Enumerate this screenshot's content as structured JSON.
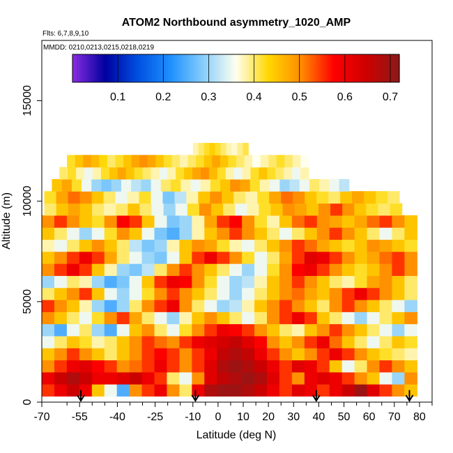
{
  "chart_data": {
    "type": "heatmap",
    "title": "ATOM2 Northbound asymmetry_1020_AMP",
    "flights_note": "Flts: 6,7,8,9,10",
    "dates_note": "MMDD: 0210,0213,0215,0218,0219",
    "xlabel": "Latitude (deg N)",
    "ylabel": "Altitude (m)",
    "xlim": [
      -70,
      85
    ],
    "ylim": [
      0,
      18000
    ],
    "xticks": [
      -70,
      -55,
      -40,
      -25,
      -10,
      0,
      10,
      20,
      30,
      40,
      50,
      60,
      70,
      80
    ],
    "xtick_labels": [
      "-70",
      "-55",
      "-40",
      "-25",
      "-10",
      "0",
      "10",
      "20",
      "30",
      "40",
      "50",
      "60",
      "70",
      "80"
    ],
    "minor_xticks": [
      -60,
      -50,
      -45,
      -35,
      -30,
      -20,
      -15,
      -5,
      5,
      15,
      25,
      35,
      45,
      55,
      65,
      75,
      85
    ],
    "yticks": [
      0,
      5000,
      10000,
      15000
    ],
    "ytick_labels": [
      "0",
      "5000",
      "10000",
      "15000"
    ],
    "colorbar": {
      "range": [
        0.0,
        0.72
      ],
      "ticks": [
        0.1,
        0.2,
        0.3,
        0.4,
        0.5,
        0.6,
        0.7
      ],
      "tick_labels": [
        "0.1",
        "0.2",
        "0.3",
        "0.4",
        "0.5",
        "0.6",
        "0.7"
      ],
      "colors": [
        "#8a2be2",
        "#0000a0",
        "#0050e0",
        "#1e90ff",
        "#87cefa",
        "#fffff0",
        "#ffd700",
        "#ff8c00",
        "#ff0000",
        "#cd0000",
        "#8b1a1a"
      ]
    },
    "profile_latitudes": [
      -54.5,
      -9,
      39,
      76
    ],
    "altitude_bands": [
      {
        "alt": 600,
        "lat_min": -70,
        "lat_max": 79,
        "values": [
          0.55,
          0.6,
          0.65,
          0.6,
          0.45,
          0.35,
          0.25,
          0.5,
          0.55,
          0.6,
          0.5,
          0.4,
          0.6,
          0.68,
          0.7,
          0.7,
          0.68,
          0.65,
          0.6,
          0.55,
          0.62,
          0.6,
          0.55,
          0.6,
          0.65,
          0.7,
          0.62,
          0.55,
          0.5,
          0.45
        ]
      },
      {
        "alt": 1200,
        "lat_min": -70,
        "lat_max": 79,
        "values": [
          0.6,
          0.65,
          0.68,
          0.65,
          0.6,
          0.6,
          0.62,
          0.65,
          0.6,
          0.55,
          0.4,
          0.35,
          0.5,
          0.62,
          0.66,
          0.68,
          0.7,
          0.68,
          0.62,
          0.55,
          0.5,
          0.6,
          0.62,
          0.6,
          0.55,
          0.5,
          0.45,
          0.35,
          0.3,
          0.5
        ]
      },
      {
        "alt": 1800,
        "lat_min": -70,
        "lat_max": 79,
        "values": [
          0.5,
          0.55,
          0.6,
          0.62,
          0.58,
          0.55,
          0.5,
          0.52,
          0.55,
          0.6,
          0.55,
          0.5,
          0.55,
          0.62,
          0.68,
          0.7,
          0.68,
          0.65,
          0.6,
          0.55,
          0.62,
          0.6,
          0.55,
          0.45,
          0.35,
          0.4,
          0.5,
          0.55,
          0.5,
          0.45
        ]
      },
      {
        "alt": 2400,
        "lat_min": -70,
        "lat_max": 79,
        "values": [
          0.45,
          0.5,
          0.55,
          0.5,
          0.45,
          0.4,
          0.45,
          0.5,
          0.55,
          0.58,
          0.55,
          0.5,
          0.55,
          0.6,
          0.66,
          0.68,
          0.66,
          0.6,
          0.55,
          0.5,
          0.45,
          0.5,
          0.55,
          0.6,
          0.55,
          0.5,
          0.45,
          0.42,
          0.4,
          0.38
        ]
      },
      {
        "alt": 3000,
        "lat_min": -70,
        "lat_max": 79,
        "values": [
          0.35,
          0.4,
          0.45,
          0.42,
          0.38,
          0.4,
          0.45,
          0.5,
          0.55,
          0.52,
          0.5,
          0.55,
          0.6,
          0.62,
          0.64,
          0.66,
          0.62,
          0.58,
          0.5,
          0.45,
          0.5,
          0.55,
          0.6,
          0.52,
          0.45,
          0.4,
          0.35,
          0.4,
          0.45,
          0.42
        ]
      },
      {
        "alt": 3600,
        "lat_min": -70,
        "lat_max": 79,
        "values": [
          0.3,
          0.25,
          0.35,
          0.4,
          0.3,
          0.25,
          0.35,
          0.45,
          0.5,
          0.4,
          0.35,
          0.42,
          0.5,
          0.55,
          0.6,
          0.58,
          0.55,
          0.5,
          0.45,
          0.4,
          0.38,
          0.45,
          0.5,
          0.55,
          0.5,
          0.45,
          0.4,
          0.35,
          0.3,
          0.35
        ]
      },
      {
        "alt": 4200,
        "lat_min": -70,
        "lat_max": 79,
        "values": [
          0.5,
          0.45,
          0.4,
          0.35,
          0.42,
          0.5,
          0.55,
          0.48,
          0.4,
          0.35,
          0.3,
          0.38,
          0.45,
          0.5,
          0.45,
          0.4,
          0.35,
          0.4,
          0.5,
          0.55,
          0.6,
          0.55,
          0.45,
          0.4,
          0.35,
          0.3,
          0.35,
          0.4,
          0.45,
          0.5
        ]
      },
      {
        "alt": 4800,
        "lat_min": -70,
        "lat_max": 79,
        "values": [
          0.55,
          0.5,
          0.45,
          0.38,
          0.3,
          0.25,
          0.3,
          0.4,
          0.5,
          0.55,
          0.6,
          0.5,
          0.4,
          0.35,
          0.3,
          0.32,
          0.38,
          0.45,
          0.5,
          0.55,
          0.5,
          0.45,
          0.4,
          0.5,
          0.55,
          0.5,
          0.45,
          0.4,
          0.35,
          0.3
        ]
      },
      {
        "alt": 5400,
        "lat_min": -70,
        "lat_max": 79,
        "values": [
          0.4,
          0.45,
          0.5,
          0.55,
          0.45,
          0.35,
          0.3,
          0.35,
          0.42,
          0.5,
          0.55,
          0.5,
          0.45,
          0.4,
          0.35,
          0.3,
          0.35,
          0.4,
          0.45,
          0.5,
          0.52,
          0.48,
          0.45,
          0.5,
          0.55,
          0.6,
          0.55,
          0.5,
          0.45,
          0.4
        ]
      },
      {
        "alt": 6000,
        "lat_min": -70,
        "lat_max": 79,
        "values": [
          0.3,
          0.35,
          0.4,
          0.38,
          0.3,
          0.25,
          0.28,
          0.35,
          0.45,
          0.55,
          0.6,
          0.58,
          0.5,
          0.42,
          0.35,
          0.3,
          0.32,
          0.38,
          0.45,
          0.5,
          0.55,
          0.5,
          0.45,
          0.4,
          0.38,
          0.42,
          0.48,
          0.5,
          0.45,
          0.4
        ]
      },
      {
        "alt": 6600,
        "lat_min": -70,
        "lat_max": 79,
        "values": [
          0.5,
          0.55,
          0.6,
          0.55,
          0.45,
          0.38,
          0.3,
          0.28,
          0.32,
          0.4,
          0.5,
          0.55,
          0.5,
          0.45,
          0.4,
          0.35,
          0.3,
          0.35,
          0.42,
          0.5,
          0.58,
          0.6,
          0.55,
          0.5,
          0.45,
          0.42,
          0.45,
          0.5,
          0.55,
          0.5
        ]
      },
      {
        "alt": 7200,
        "lat_min": -70,
        "lat_max": 79,
        "values": [
          0.45,
          0.5,
          0.55,
          0.6,
          0.55,
          0.48,
          0.4,
          0.35,
          0.3,
          0.28,
          0.35,
          0.45,
          0.55,
          0.6,
          0.55,
          0.5,
          0.42,
          0.35,
          0.4,
          0.48,
          0.55,
          0.62,
          0.6,
          0.55,
          0.5,
          0.45,
          0.48,
          0.52,
          0.55,
          0.5
        ]
      },
      {
        "alt": 7800,
        "lat_min": -70,
        "lat_max": 79,
        "values": [
          0.38,
          0.35,
          0.4,
          0.45,
          0.5,
          0.45,
          0.4,
          0.32,
          0.28,
          0.3,
          0.38,
          0.45,
          0.5,
          0.48,
          0.42,
          0.38,
          0.35,
          0.4,
          0.45,
          0.5,
          0.55,
          0.52,
          0.48,
          0.45,
          0.42,
          0.45,
          0.5,
          0.48,
          0.45,
          0.42
        ]
      },
      {
        "alt": 8400,
        "lat_min": -70,
        "lat_max": 79,
        "values": [
          0.45,
          0.4,
          0.35,
          0.3,
          0.35,
          0.42,
          0.5,
          0.45,
          0.35,
          0.28,
          0.25,
          0.3,
          0.38,
          0.45,
          0.5,
          0.55,
          0.5,
          0.45,
          0.4,
          0.35,
          0.4,
          0.45,
          0.5,
          0.55,
          0.5,
          0.45,
          0.4,
          0.35,
          0.4,
          0.45
        ]
      },
      {
        "alt": 9000,
        "lat_min": -70,
        "lat_max": 79,
        "values": [
          0.5,
          0.55,
          0.5,
          0.45,
          0.42,
          0.5,
          0.58,
          0.55,
          0.45,
          0.35,
          0.28,
          0.3,
          0.38,
          0.48,
          0.55,
          0.58,
          0.5,
          0.42,
          0.38,
          0.45,
          0.52,
          0.55,
          0.5,
          0.48,
          0.45,
          0.48,
          0.52,
          0.55,
          0.5,
          0.45
        ]
      },
      {
        "alt": 9600,
        "lat_min": -69,
        "lat_max": 73,
        "values": [
          0.4,
          0.45,
          0.48,
          0.45,
          0.4,
          0.38,
          0.4,
          0.45,
          0.4,
          0.35,
          0.3,
          0.35,
          0.42,
          0.5,
          0.45,
          0.4,
          0.35,
          0.38,
          0.42,
          0.45,
          0.5,
          0.48,
          0.45,
          0.5,
          0.55,
          0.5,
          0.45,
          0.42,
          0.4,
          0.42
        ]
      },
      {
        "alt": 10200,
        "lat_min": -69,
        "lat_max": 72,
        "values": [
          0.42,
          0.48,
          0.52,
          0.5,
          0.45,
          0.4,
          0.35,
          0.38,
          0.42,
          0.35,
          0.28,
          0.32,
          0.38,
          0.45,
          0.5,
          0.45,
          0.4,
          0.38,
          0.42,
          0.48,
          0.52,
          0.5,
          0.45,
          0.42,
          0.4,
          0.45,
          0.48,
          0.45,
          0.42,
          0.4
        ]
      },
      {
        "alt": 10800,
        "lat_min": -66,
        "lat_max": 52,
        "values": [
          0.45,
          0.48,
          0.42,
          0.35,
          0.3,
          0.28,
          0.3,
          0.35,
          0.32,
          0.3,
          0.35,
          0.4,
          0.42,
          0.38,
          0.35,
          0.38,
          0.42,
          0.45,
          0.5,
          0.48,
          0.42,
          0.38,
          0.35,
          0.3,
          0.32,
          0.35,
          0.4,
          0.38,
          0.35,
          0.32
        ]
      },
      {
        "alt": 11400,
        "lat_min": -63,
        "lat_max": 36,
        "values": [
          0.4,
          0.42,
          0.38,
          0.35,
          0.38,
          0.42,
          0.45,
          0.48,
          0.45,
          0.42,
          0.4,
          0.38,
          0.35,
          0.38,
          0.42,
          0.45,
          0.48,
          0.5,
          0.46,
          0.42,
          0.38,
          0.35,
          0.38,
          0.42,
          0.45,
          0.42,
          0.4,
          0.38,
          0.35,
          0.38
        ]
      },
      {
        "alt": 12000,
        "lat_min": -60,
        "lat_max": 36,
        "values": [
          0.42,
          0.45,
          0.48,
          0.46,
          0.43,
          0.4,
          0.42,
          0.45,
          0.48,
          0.5,
          0.48,
          0.45,
          0.42,
          0.4,
          0.38,
          0.4,
          0.42,
          0.45,
          0.48,
          0.45,
          0.42,
          0.4,
          0.38,
          0.36,
          0.38,
          0.4,
          0.42,
          0.4,
          0.38,
          0.36
        ]
      },
      {
        "alt": 12600,
        "lat_min": -10,
        "lat_max": 12,
        "values": [
          0.38,
          0.4,
          0.42,
          0.44,
          0.42,
          0.4,
          0.38,
          0.37,
          0.39,
          0.41
        ]
      }
    ]
  }
}
